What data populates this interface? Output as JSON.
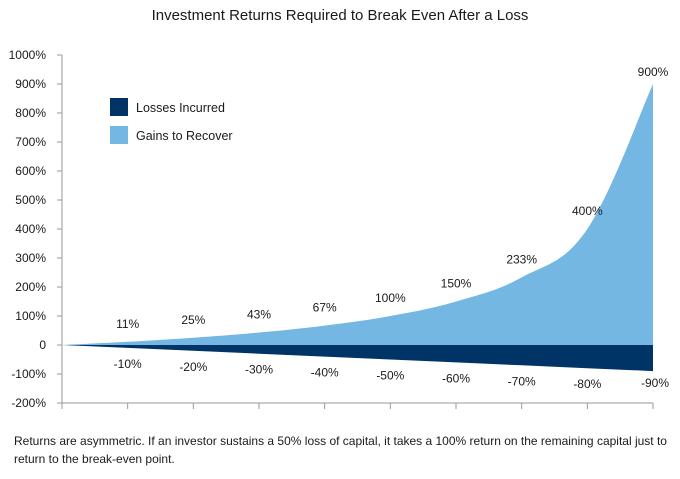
{
  "chart_data": {
    "type": "area",
    "title": "Investment Returns Required to Break Even After a Loss",
    "xlabel": "",
    "ylabel": "",
    "ylim": [
      -200,
      1000
    ],
    "yticks": [
      "1000%",
      "900%",
      "800%",
      "700%",
      "600%",
      "500%",
      "400%",
      "300%",
      "200%",
      "100%",
      "0",
      "-100%",
      "-200%"
    ],
    "ytick_values": [
      1000,
      900,
      800,
      700,
      600,
      500,
      400,
      300,
      200,
      100,
      0,
      -100,
      -200
    ],
    "x": [
      0,
      10,
      20,
      30,
      40,
      50,
      60,
      70,
      80,
      90
    ],
    "series": [
      {
        "name": "Losses Incurred",
        "color": "#003366",
        "values": [
          0,
          -10,
          -20,
          -30,
          -40,
          -50,
          -60,
          -70,
          -80,
          -90
        ],
        "labels": [
          "",
          "-10%",
          "-20%",
          "-30%",
          "-40%",
          "-50%",
          "-60%",
          "-70%",
          "-80%",
          "-90%"
        ]
      },
      {
        "name": "Gains to Recover",
        "color": "#74b7e3",
        "values": [
          0,
          11,
          25,
          43,
          67,
          100,
          150,
          233,
          400,
          900
        ],
        "labels": [
          "",
          "11%",
          "25%",
          "43%",
          "67%",
          "100%",
          "150%",
          "233%",
          "400%",
          "900%"
        ]
      }
    ],
    "legend_position": "top-left",
    "grid": false
  },
  "footnote": "Returns are asymmetric. If an investor sustains a 50% loss of capital, it takes a 100% return on the remaining capital just to return to the break-even point."
}
